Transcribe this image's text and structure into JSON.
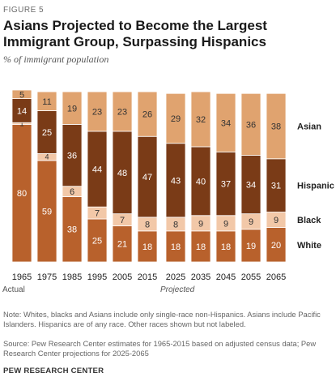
{
  "figure_label": "FIGURE 5",
  "title": "Asians Projected to Become the Largest Immigrant Group, Surpassing Hispanics",
  "subtitle": "% of immigrant population",
  "note": "Note: Whites, blacks and Asians include only single-race non-Hispanics. Asians include Pacific Islanders. Hispanics are of any race. Other races shown but not labeled.",
  "source": "Source: Pew Research Center estimates for 1965-2015 based on adjusted census data; Pew Research Center projections for 2025-2065",
  "credit": "PEW RESEARCH CENTER",
  "chart_data": {
    "type": "bar",
    "stacked": true,
    "ylim": [
      0,
      100
    ],
    "categories": [
      "1965",
      "1975",
      "1985",
      "1995",
      "2005",
      "2015",
      "2025",
      "2035",
      "2045",
      "2055",
      "2065"
    ],
    "group_labels": [
      {
        "label": "Actual",
        "categories": [
          "1965",
          "1975",
          "1985",
          "1995",
          "2005",
          "2015"
        ]
      },
      {
        "label": "Projected",
        "categories": [
          "2025",
          "2035",
          "2045",
          "2055",
          "2065"
        ]
      }
    ],
    "series": [
      {
        "name": "White",
        "color": "#b8612c",
        "values": [
          80,
          59,
          38,
          25,
          21,
          18,
          18,
          18,
          18,
          19,
          20
        ]
      },
      {
        "name": "Black",
        "color": "#f2c8a8",
        "values": [
          1,
          4,
          6,
          7,
          7,
          8,
          8,
          9,
          9,
          9,
          9
        ]
      },
      {
        "name": "Hispanic",
        "color": "#7a3b17",
        "values": [
          14,
          25,
          36,
          44,
          48,
          47,
          43,
          40,
          37,
          34,
          31
        ]
      },
      {
        "name": "Asian",
        "color": "#e0a36f",
        "values": [
          5,
          11,
          19,
          23,
          23,
          26,
          29,
          32,
          34,
          36,
          38
        ]
      }
    ],
    "legend": "right"
  }
}
